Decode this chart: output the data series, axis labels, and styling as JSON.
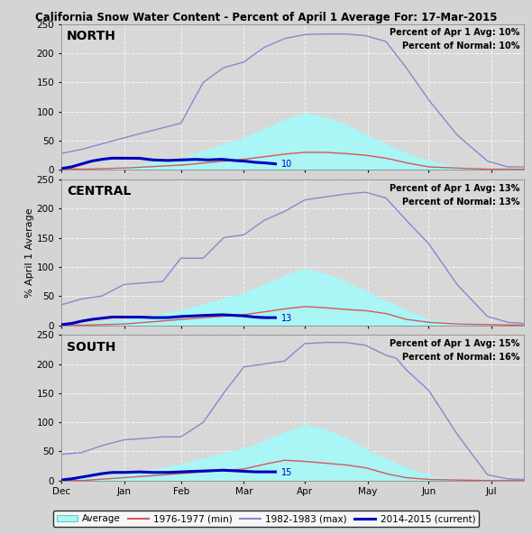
{
  "title": "California Snow Water Content - Percent of April 1 Average For: 17-Mar-2015",
  "regions": [
    "NORTH",
    "CENTRAL",
    "SOUTH"
  ],
  "annotations": [
    {
      "pct_apr1": "10%",
      "pct_normal": "10%",
      "label": "10"
    },
    {
      "pct_apr1": "13%",
      "pct_normal": "13%",
      "label": "13"
    },
    {
      "pct_apr1": "15%",
      "pct_normal": "16%",
      "label": "15"
    }
  ],
  "ylabel": "% April 1 Average",
  "ylim": [
    0,
    250
  ],
  "yticks": [
    0,
    50,
    100,
    150,
    200,
    250
  ],
  "bg_color": "#d8d8d8",
  "plot_bg_color": "#d0d0d0",
  "avg_fill_color": "#aaf5f5",
  "min_color": "#dd4444",
  "max_color": "#8888cc",
  "current_color": "#0000bb",
  "month_days": [
    0,
    31,
    59,
    90,
    120,
    151,
    181,
    212
  ],
  "month_labels": [
    "Dec",
    "Jan",
    "Feb",
    "Mar",
    "Apr",
    "May",
    "Jun",
    "Jul"
  ],
  "xmax": 228
}
